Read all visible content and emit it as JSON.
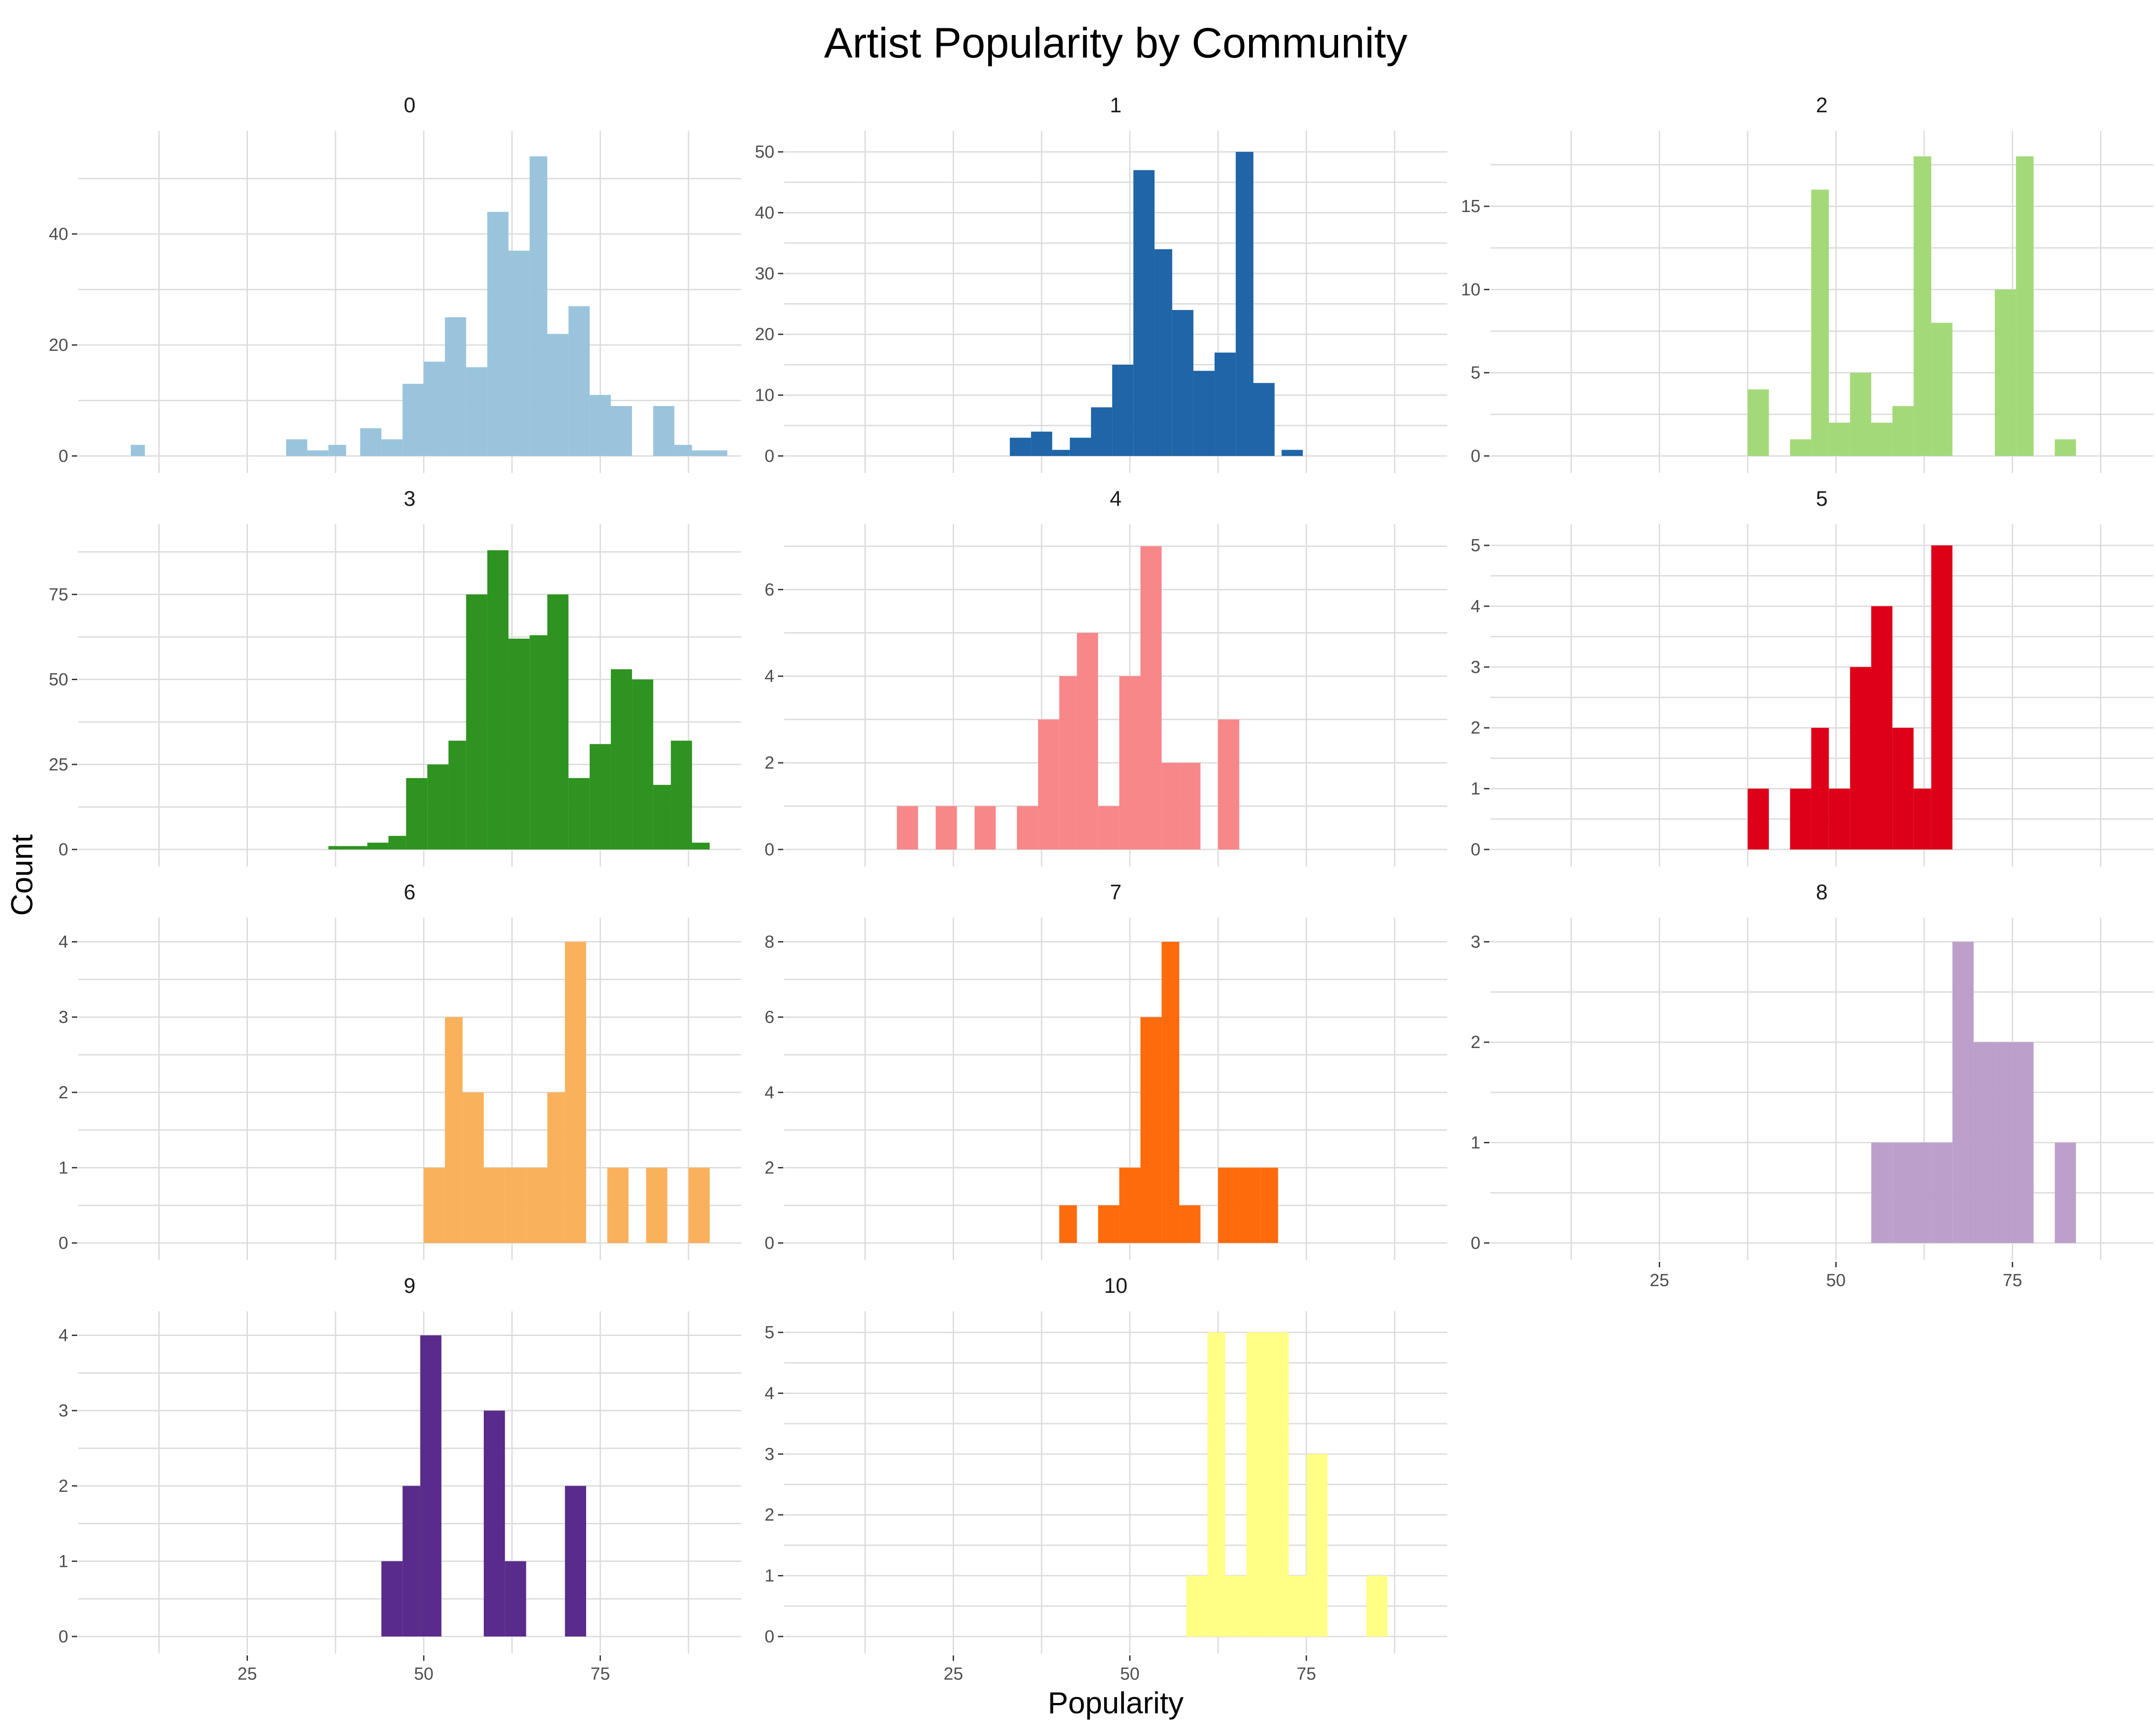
{
  "chart_data": {
    "type": "bar",
    "title": "Artist Popularity by Community",
    "xlabel": "Popularity",
    "ylabel": "Count",
    "xlim": [
      2,
      94
    ],
    "x_ticks": [
      25,
      50,
      75
    ],
    "bin_width": 2.83,
    "grid": true,
    "legend": "none",
    "facets": [
      {
        "name": "0",
        "color": "#9ac4dc",
        "ylim": [
          0,
          57
        ],
        "yticks": [
          0,
          20,
          40
        ],
        "bins": [
          [
            8.5,
            10.5,
            2
          ],
          [
            30.5,
            33.5,
            3
          ],
          [
            33.5,
            36.5,
            1
          ],
          [
            36.5,
            39,
            2
          ],
          [
            41,
            44,
            5
          ],
          [
            44,
            47,
            3
          ],
          [
            47,
            50,
            13
          ],
          [
            50,
            53,
            17
          ],
          [
            53,
            56,
            25
          ],
          [
            56,
            59,
            16
          ],
          [
            59,
            62,
            44
          ],
          [
            62,
            65,
            37
          ],
          [
            65,
            67.5,
            54
          ],
          [
            67.5,
            70.5,
            22
          ],
          [
            70.5,
            73.5,
            27
          ],
          [
            73.5,
            76.5,
            11
          ],
          [
            76.5,
            79.5,
            9
          ],
          [
            82.5,
            85.5,
            9
          ],
          [
            85.5,
            88,
            2
          ],
          [
            88,
            93,
            1
          ]
        ]
      },
      {
        "name": "1",
        "color": "#1f65a8",
        "ylim": [
          0,
          52
        ],
        "yticks": [
          0,
          10,
          20,
          30,
          40,
          50
        ],
        "bins": [
          [
            33,
            36,
            3
          ],
          [
            36,
            39,
            4
          ],
          [
            39,
            41.5,
            1
          ],
          [
            41.5,
            44.5,
            3
          ],
          [
            44.5,
            47.5,
            8
          ],
          [
            47.5,
            50.5,
            15
          ],
          [
            50.5,
            53.5,
            47
          ],
          [
            53.5,
            56,
            34
          ],
          [
            56,
            59,
            24
          ],
          [
            59,
            62,
            14
          ],
          [
            62,
            65,
            17
          ],
          [
            65,
            67.5,
            50
          ],
          [
            67.5,
            70.5,
            12
          ],
          [
            71.5,
            74.5,
            1
          ]
        ]
      },
      {
        "name": "2",
        "color": "#a4d97a",
        "ylim": [
          0,
          19
        ],
        "yticks": [
          0,
          5,
          10,
          15
        ],
        "bins": [
          [
            37.5,
            40.5,
            4
          ],
          [
            43.5,
            46.5,
            1
          ],
          [
            46.5,
            49,
            16
          ],
          [
            49,
            52,
            2
          ],
          [
            52,
            55,
            5
          ],
          [
            55,
            58,
            2
          ],
          [
            58,
            61,
            3
          ],
          [
            61,
            63.5,
            18
          ],
          [
            63.5,
            66.5,
            8
          ],
          [
            72.5,
            75.5,
            10
          ],
          [
            75.5,
            78,
            18
          ],
          [
            81,
            84,
            1
          ]
        ]
      },
      {
        "name": "3",
        "color": "#2e9320",
        "ylim": [
          0,
          93
        ],
        "yticks": [
          0,
          25,
          50,
          75
        ],
        "bins": [
          [
            36.5,
            39,
            1
          ],
          [
            39,
            42,
            1
          ],
          [
            42,
            45,
            2
          ],
          [
            45,
            47.5,
            4
          ],
          [
            47.5,
            50.5,
            21
          ],
          [
            50.5,
            53.5,
            25
          ],
          [
            53.5,
            56,
            32
          ],
          [
            56,
            59,
            75
          ],
          [
            59,
            62,
            88
          ],
          [
            62,
            65,
            62
          ],
          [
            65,
            67.5,
            63
          ],
          [
            67.5,
            70.5,
            75
          ],
          [
            70.5,
            73.5,
            21
          ],
          [
            73.5,
            76.5,
            31
          ],
          [
            76.5,
            79.5,
            53
          ],
          [
            79.5,
            82.5,
            50
          ],
          [
            82.5,
            85,
            19
          ],
          [
            85,
            88,
            32
          ],
          [
            88,
            90.5,
            2
          ]
        ]
      },
      {
        "name": "4",
        "color": "#f8878a",
        "ylim": [
          0,
          7.3
        ],
        "yticks": [
          0,
          2,
          4,
          6
        ],
        "bins": [
          [
            17,
            20,
            1
          ],
          [
            22.5,
            25.5,
            1
          ],
          [
            28,
            31,
            1
          ],
          [
            34,
            37,
            1
          ],
          [
            37,
            40,
            3
          ],
          [
            40,
            42.5,
            4
          ],
          [
            42.5,
            45.5,
            5
          ],
          [
            45.5,
            48.5,
            1
          ],
          [
            48.5,
            51.5,
            4
          ],
          [
            51.5,
            54.5,
            7
          ],
          [
            54.5,
            57,
            2
          ],
          [
            57,
            60,
            2
          ],
          [
            62.5,
            65.5,
            3
          ]
        ]
      },
      {
        "name": "5",
        "color": "#dd0018",
        "ylim": [
          0,
          5.2
        ],
        "yticks": [
          0,
          1,
          2,
          3,
          4,
          5
        ],
        "bins": [
          [
            37.5,
            40.5,
            1
          ],
          [
            43.5,
            46.5,
            1
          ],
          [
            46.5,
            49,
            2
          ],
          [
            49,
            52,
            1
          ],
          [
            52,
            55,
            3
          ],
          [
            55,
            58,
            4
          ],
          [
            58,
            61,
            2
          ],
          [
            61,
            63.5,
            1
          ],
          [
            63.5,
            66.5,
            5
          ]
        ]
      },
      {
        "name": "6",
        "color": "#fab15c",
        "ylim": [
          0,
          4.2
        ],
        "yticks": [
          0,
          1,
          2,
          3,
          4
        ],
        "bins": [
          [
            50,
            53,
            1
          ],
          [
            53,
            55.5,
            3
          ],
          [
            55.5,
            58.5,
            2
          ],
          [
            58.5,
            61.5,
            1
          ],
          [
            61.5,
            64.5,
            1
          ],
          [
            64.5,
            67.5,
            1
          ],
          [
            67.5,
            70,
            2
          ],
          [
            70,
            73,
            4
          ],
          [
            76,
            79,
            1
          ],
          [
            81.5,
            84.5,
            1
          ],
          [
            87.5,
            90.5,
            1
          ]
        ]
      },
      {
        "name": "7",
        "color": "#fe6b0c",
        "ylim": [
          0,
          8.4
        ],
        "yticks": [
          0,
          2,
          4,
          6,
          8
        ],
        "bins": [
          [
            40,
            42.5,
            1
          ],
          [
            42.5,
            45.5,
            0
          ],
          [
            45.5,
            48.5,
            1
          ],
          [
            48.5,
            51.5,
            2
          ],
          [
            51.5,
            54.5,
            6
          ],
          [
            54.5,
            57,
            8
          ],
          [
            57,
            60,
            1
          ],
          [
            62.5,
            65.5,
            2
          ],
          [
            65.5,
            68.5,
            2
          ],
          [
            68.5,
            71,
            2
          ]
        ]
      },
      {
        "name": "8",
        "color": "#bca0cb",
        "ylim": [
          0,
          3.15
        ],
        "yticks": [
          0,
          1,
          2,
          3
        ],
        "bins": [
          [
            55,
            58,
            1
          ],
          [
            58,
            60.5,
            1
          ],
          [
            60.5,
            63.5,
            1
          ],
          [
            63.5,
            66.5,
            1
          ],
          [
            66.5,
            69.5,
            3
          ],
          [
            69.5,
            72.5,
            2
          ],
          [
            72.5,
            75,
            2
          ],
          [
            75,
            78,
            2
          ],
          [
            81,
            84,
            1
          ]
        ]
      },
      {
        "name": "9",
        "color": "#592b8b",
        "ylim": [
          0,
          4.2
        ],
        "yticks": [
          0,
          1,
          2,
          3,
          4
        ],
        "bins": [
          [
            44,
            47,
            1
          ],
          [
            47,
            49.5,
            2
          ],
          [
            49.5,
            52.5,
            4
          ],
          [
            58.5,
            61.5,
            3
          ],
          [
            61.5,
            64.5,
            1
          ],
          [
            70,
            73,
            2
          ]
        ]
      },
      {
        "name": "10",
        "color": "#ffff85",
        "ylim": [
          0,
          5.2
        ],
        "yticks": [
          0,
          1,
          2,
          3,
          4,
          5
        ],
        "bins": [
          [
            58,
            61,
            1
          ],
          [
            61,
            63.5,
            5
          ],
          [
            63.5,
            66.5,
            1
          ],
          [
            66.5,
            69.5,
            5
          ],
          [
            69.5,
            72.5,
            5
          ],
          [
            72.5,
            75,
            1
          ],
          [
            75,
            78,
            3
          ],
          [
            83.5,
            86.5,
            1
          ]
        ]
      }
    ]
  }
}
